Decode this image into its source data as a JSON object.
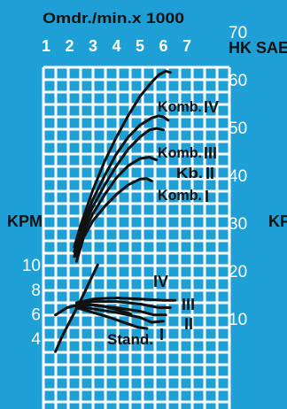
{
  "chart_data": {
    "type": "line",
    "top_axis": {
      "label": "Omdr./min.x 1000",
      "ticks": [
        "1",
        "2",
        "3",
        "4",
        "5",
        "6",
        "7"
      ]
    },
    "right_axis": {
      "label": "HK SAE",
      "ticks": [
        "70",
        "60",
        "50",
        "40",
        "30",
        "20",
        "10"
      ],
      "ylim": [
        0,
        70
      ]
    },
    "left_axis": {
      "label": "KPM",
      "ticks": [
        "10",
        "8",
        "6",
        "4"
      ]
    },
    "right_edge_label": "KP",
    "power_curves": [
      {
        "name": "Komb. IV",
        "x": [
          2.2,
          2.5,
          3,
          3.5,
          4,
          4.5,
          5,
          5.5,
          5.8,
          6.1,
          6.3
        ],
        "y": [
          25,
          30,
          37,
          43,
          48,
          52.5,
          56.5,
          59.5,
          61,
          61.8,
          61.5
        ]
      },
      {
        "name": "Komb. III",
        "x": [
          2.2,
          2.5,
          3,
          3.5,
          4,
          4.5,
          5,
          5.5,
          5.8,
          6.0,
          6.2
        ],
        "y": [
          24,
          29,
          35,
          40,
          44.5,
          48,
          50.5,
          52,
          52.4,
          52.2,
          51.5
        ]
      },
      {
        "name": "Kb. II",
        "x": [
          2.2,
          2.5,
          3,
          3.5,
          4,
          4.5,
          5,
          5.4,
          5.7,
          6.0
        ],
        "y": [
          23,
          28,
          33.5,
          38,
          42,
          45.5,
          48,
          49.5,
          49.8,
          49.5
        ]
      },
      {
        "name": "Komb. I",
        "x": [
          2.3,
          2.6,
          3,
          3.5,
          4,
          4.5,
          5,
          5.4,
          5.7
        ],
        "y": [
          23,
          28,
          32,
          36,
          39.5,
          42,
          43.5,
          43.8,
          43.2
        ]
      },
      {
        "name": "Stand.",
        "x": [
          2.3,
          2.6,
          3,
          3.5,
          4,
          4.5,
          5,
          5.3,
          5.5
        ],
        "y": [
          22,
          27,
          30.5,
          33.5,
          36,
          38,
          39.2,
          39.3,
          38.8
        ]
      }
    ],
    "torque_curves": [
      {
        "name": "IV",
        "x": [
          2.3,
          3,
          4,
          5,
          6,
          6.5
        ],
        "y": [
          6.9,
          7.2,
          7.3,
          7.2,
          7.1,
          7.1
        ]
      },
      {
        "name": "III",
        "x": [
          2.3,
          3,
          4,
          5,
          5.8,
          6.3
        ],
        "y": [
          6.8,
          7.0,
          7.0,
          6.8,
          6.5,
          6.5
        ]
      },
      {
        "name": "II",
        "x": [
          2.3,
          3,
          4,
          5,
          5.6,
          6.1
        ],
        "y": [
          6.7,
          6.7,
          6.5,
          6.2,
          5.9,
          5.9
        ]
      },
      {
        "name": "I",
        "x": [
          2.3,
          3,
          4,
          5,
          5.5,
          6.0
        ],
        "y": [
          6.6,
          6.4,
          6.1,
          5.7,
          5.3,
          5.4
        ]
      },
      {
        "name": "Stand.",
        "x": [
          2.3,
          3,
          3.7,
          4.3,
          4.9,
          5.3
        ],
        "y": [
          6.5,
          6.1,
          5.7,
          5.3,
          4.9,
          4.8
        ]
      }
    ],
    "extra_curves": [
      {
        "x": [
          1.4,
          1.9,
          2.5,
          3.2,
          3.9,
          4.6
        ],
        "y": [
          5.9,
          6.5,
          6.8,
          6.7,
          6.4,
          6.0
        ]
      },
      {
        "x": [
          1.4,
          1.7,
          2.1,
          2.5,
          2.9,
          3.2
        ],
        "y": [
          2.9,
          4.2,
          5.7,
          7.2,
          8.8,
          10.0
        ]
      }
    ],
    "curve_labels": {
      "komb4": {
        "text": "Komb.",
        "numeral": "IV"
      },
      "komb3": {
        "text": "Komb.",
        "numeral": "III"
      },
      "kb2": {
        "text": "Kb.",
        "numeral": "II"
      },
      "komb1": {
        "text": "Komb.",
        "numeral": "I"
      },
      "iv": "IV",
      "iii": "III",
      "ii": "II",
      "i": "I",
      "stand": "Stand."
    },
    "grid": true
  }
}
